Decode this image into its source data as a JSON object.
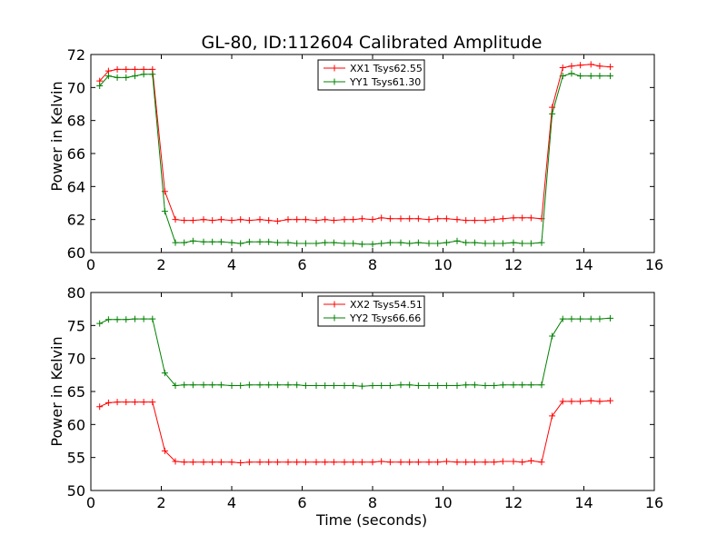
{
  "chart_data": [
    {
      "type": "line",
      "title": "GL-80, ID:112604 Calibrated Amplitude",
      "xlabel": "",
      "ylabel": "Power in Kelvin",
      "xlim": [
        0,
        16
      ],
      "ylim": [
        60,
        72
      ],
      "xticks": [
        "0",
        "2",
        "4",
        "6",
        "8",
        "10",
        "12",
        "14",
        "16"
      ],
      "yticks": [
        "60",
        "62",
        "64",
        "66",
        "68",
        "70",
        "72"
      ],
      "legend_placement": "upper-center",
      "x": [
        0.25,
        0.5,
        0.75,
        1.0,
        1.25,
        1.5,
        1.75,
        2.1,
        2.4,
        2.65,
        2.9,
        3.2,
        3.45,
        3.7,
        4.0,
        4.25,
        4.5,
        4.8,
        5.05,
        5.3,
        5.6,
        5.85,
        6.1,
        6.4,
        6.65,
        6.9,
        7.2,
        7.45,
        7.7,
        8.0,
        8.25,
        8.5,
        8.8,
        9.05,
        9.3,
        9.6,
        9.85,
        10.1,
        10.4,
        10.65,
        10.9,
        11.2,
        11.45,
        11.7,
        12.0,
        12.25,
        12.5,
        12.8,
        13.1,
        13.4,
        13.65,
        13.9,
        14.2,
        14.45,
        14.75
      ],
      "series": [
        {
          "name": "XX1 Tsys62.55",
          "color": "#ff0000",
          "values": [
            70.4,
            71.0,
            71.1,
            71.1,
            71.1,
            71.1,
            71.1,
            63.7,
            62.0,
            61.95,
            61.95,
            62.0,
            61.95,
            62.0,
            61.95,
            62.0,
            61.95,
            62.0,
            61.95,
            61.9,
            62.0,
            62.0,
            62.0,
            61.95,
            62.0,
            61.95,
            62.0,
            62.0,
            62.05,
            62.0,
            62.1,
            62.05,
            62.05,
            62.05,
            62.05,
            62.0,
            62.05,
            62.05,
            62.0,
            61.95,
            61.95,
            61.95,
            62.0,
            62.05,
            62.1,
            62.1,
            62.1,
            62.05,
            68.8,
            71.2,
            71.3,
            71.35,
            71.4,
            71.3,
            71.25
          ]
        },
        {
          "name": "YY1 Tsys61.30",
          "color": "#008000",
          "values": [
            70.1,
            70.7,
            70.6,
            70.6,
            70.7,
            70.8,
            70.8,
            62.5,
            60.6,
            60.6,
            60.7,
            60.65,
            60.65,
            60.65,
            60.6,
            60.55,
            60.65,
            60.65,
            60.65,
            60.6,
            60.6,
            60.55,
            60.55,
            60.55,
            60.6,
            60.6,
            60.55,
            60.55,
            60.5,
            60.5,
            60.55,
            60.6,
            60.6,
            60.55,
            60.6,
            60.55,
            60.55,
            60.6,
            60.7,
            60.6,
            60.6,
            60.55,
            60.55,
            60.55,
            60.6,
            60.55,
            60.55,
            60.6,
            68.4,
            70.7,
            70.85,
            70.7,
            70.7,
            70.7,
            70.7
          ]
        }
      ]
    },
    {
      "type": "line",
      "title": "",
      "xlabel": "Time (seconds)",
      "ylabel": "Power in Kelvin",
      "xlim": [
        0,
        16
      ],
      "ylim": [
        50,
        80
      ],
      "xticks": [
        "0",
        "2",
        "4",
        "6",
        "8",
        "10",
        "12",
        "14",
        "16"
      ],
      "yticks": [
        "50",
        "55",
        "60",
        "65",
        "70",
        "75",
        "80"
      ],
      "legend_placement": "upper-center",
      "x": [
        0.25,
        0.5,
        0.75,
        1.0,
        1.25,
        1.5,
        1.75,
        2.1,
        2.4,
        2.65,
        2.9,
        3.2,
        3.45,
        3.7,
        4.0,
        4.25,
        4.5,
        4.8,
        5.05,
        5.3,
        5.6,
        5.85,
        6.1,
        6.4,
        6.65,
        6.9,
        7.2,
        7.45,
        7.7,
        8.0,
        8.25,
        8.5,
        8.8,
        9.05,
        9.3,
        9.6,
        9.85,
        10.1,
        10.4,
        10.65,
        10.9,
        11.2,
        11.45,
        11.7,
        12.0,
        12.25,
        12.5,
        12.8,
        13.1,
        13.4,
        13.65,
        13.9,
        14.2,
        14.45,
        14.75
      ],
      "series": [
        {
          "name": "XX2 Tsys54.51",
          "color": "#ff0000",
          "values": [
            62.7,
            63.3,
            63.4,
            63.4,
            63.4,
            63.4,
            63.4,
            56.0,
            54.4,
            54.3,
            54.3,
            54.3,
            54.3,
            54.3,
            54.3,
            54.2,
            54.3,
            54.3,
            54.3,
            54.3,
            54.3,
            54.3,
            54.3,
            54.3,
            54.3,
            54.3,
            54.3,
            54.3,
            54.3,
            54.3,
            54.4,
            54.3,
            54.3,
            54.3,
            54.3,
            54.3,
            54.3,
            54.4,
            54.3,
            54.3,
            54.3,
            54.3,
            54.3,
            54.4,
            54.4,
            54.3,
            54.5,
            54.3,
            61.3,
            63.5,
            63.5,
            63.5,
            63.6,
            63.5,
            63.6
          ]
        },
        {
          "name": "YY2 Tsys66.66",
          "color": "#008000",
          "values": [
            75.3,
            75.9,
            75.9,
            75.9,
            76.0,
            76.0,
            76.0,
            67.8,
            65.9,
            66.0,
            66.0,
            66.0,
            66.0,
            66.0,
            65.9,
            65.9,
            66.0,
            66.0,
            66.0,
            66.0,
            66.0,
            66.0,
            65.9,
            65.9,
            65.9,
            65.9,
            65.9,
            65.9,
            65.8,
            65.9,
            65.9,
            65.9,
            66.0,
            66.0,
            65.9,
            65.9,
            65.9,
            65.9,
            65.9,
            66.0,
            66.0,
            65.9,
            65.9,
            66.0,
            66.0,
            66.0,
            66.0,
            66.0,
            73.4,
            76.0,
            76.0,
            76.0,
            76.0,
            76.0,
            76.1
          ]
        }
      ]
    }
  ]
}
